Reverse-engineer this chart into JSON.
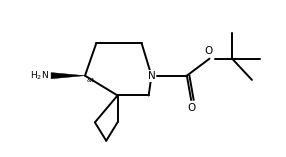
{
  "bg_color": "#ffffff",
  "line_color": "#000000",
  "line_width": 1.4,
  "fig_width": 2.86,
  "fig_height": 1.57,
  "dpi": 100,
  "xlim": [
    0,
    10
  ],
  "ylim": [
    0,
    5.5
  ]
}
